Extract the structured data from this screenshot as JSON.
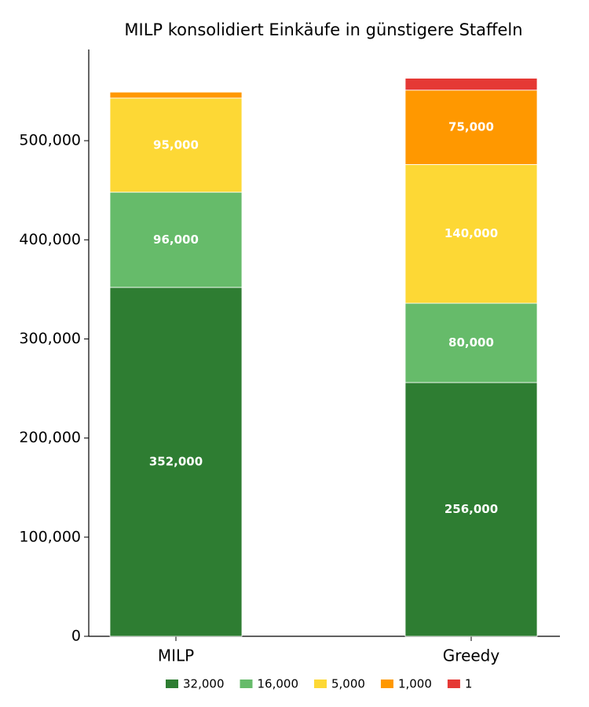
{
  "chart_data": {
    "type": "stacked_bar",
    "title": "MILP konsolidiert Einkäufe in günstigere Staffeln",
    "categories": [
      "MILP",
      "Greedy"
    ],
    "series": [
      {
        "name": "32,000",
        "color": "#2e7d32",
        "values": [
          352000,
          256000
        ],
        "value_labels": [
          "352,000",
          "256,000"
        ]
      },
      {
        "name": "16,000",
        "color": "#66bb6a",
        "values": [
          96000,
          80000
        ],
        "value_labels": [
          "96,000",
          "80,000"
        ]
      },
      {
        "name": "5,000",
        "color": "#fdd835",
        "values": [
          95000,
          140000
        ],
        "value_labels": [
          "95,000",
          "140,000"
        ]
      },
      {
        "name": "1,000",
        "color": "#ff9800",
        "values": [
          6000,
          75000
        ],
        "value_labels": [
          null,
          "75,000"
        ]
      },
      {
        "name": "1",
        "color": "#e53935",
        "values": [
          0,
          12000
        ],
        "value_labels": [
          null,
          null
        ]
      }
    ],
    "ylim": [
      0,
      592000
    ],
    "yticks": [
      0,
      {
        "value": 100000,
        "label": "100,000"
      },
      {
        "value": 200000,
        "label": "200,000"
      },
      {
        "value": 300000,
        "label": "300,000"
      },
      {
        "value": 400000,
        "label": "400,000"
      },
      {
        "value": 500000,
        "label": "500,000"
      }
    ],
    "legend": "bottom"
  }
}
